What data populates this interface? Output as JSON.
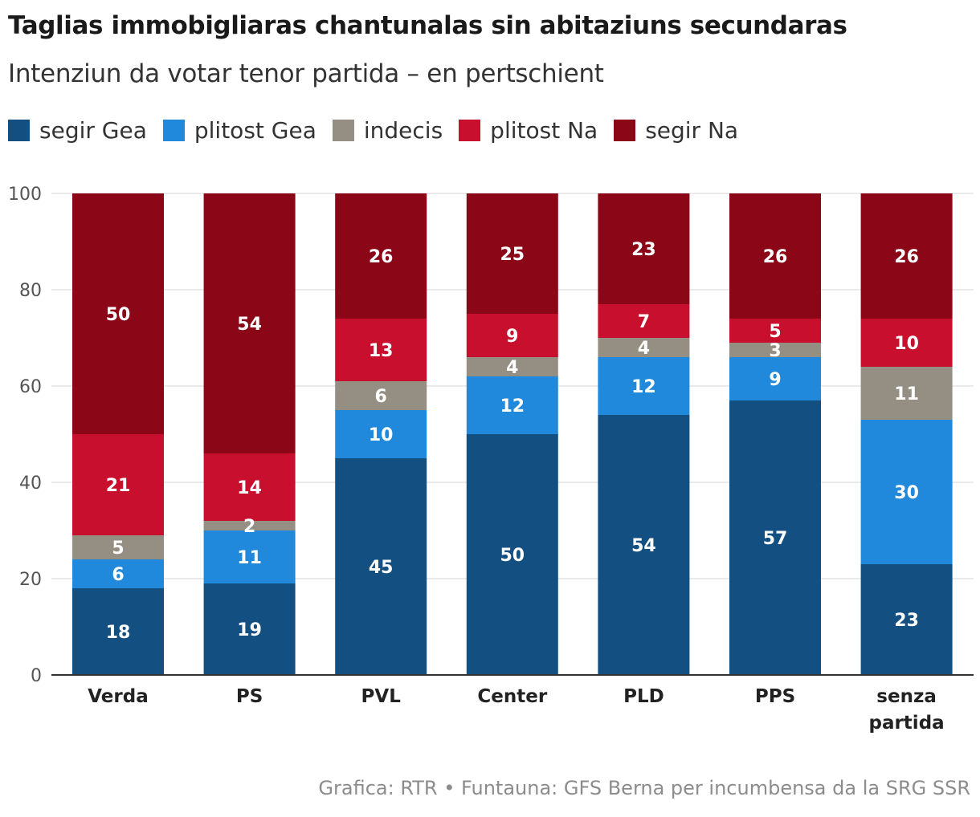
{
  "header": {
    "title": "Taglias immobigliaras chantunalas sin abitaziuns secundaras",
    "subtitle": "Intenziun da votar tenor partida – en pertschient"
  },
  "legend": {
    "items": [
      {
        "label": "segir Gea",
        "color": "#134f80"
      },
      {
        "label": "plitost Gea",
        "color": "#2189dc"
      },
      {
        "label": "indecis",
        "color": "#958f83"
      },
      {
        "label": "plitost Na",
        "color": "#c8102e"
      },
      {
        "label": "segir Na",
        "color": "#8b0616"
      }
    ]
  },
  "footer": {
    "credit": "Grafica: RTR • Funtauna: GFS Berna per incumbensa da la SRG SSR"
  },
  "chart_data": {
    "type": "bar",
    "stacked": true,
    "title": "Taglias immobigliaras chantunalas sin abitaziuns secundaras",
    "subtitle": "Intenziun da votar tenor partida – en pertschient",
    "xlabel": "",
    "ylabel": "",
    "ylim": [
      0,
      100
    ],
    "yticks": [
      0,
      20,
      40,
      60,
      80,
      100
    ],
    "grid": true,
    "legend_position": "top-left",
    "categories": [
      [
        "Verda"
      ],
      [
        "PS"
      ],
      [
        "PVL"
      ],
      [
        "Center"
      ],
      [
        "PLD"
      ],
      [
        "PPS"
      ],
      [
        "senza",
        "partida"
      ]
    ],
    "series": [
      {
        "name": "segir Gea",
        "color": "#134f80",
        "values": [
          18,
          19,
          45,
          50,
          54,
          57,
          23
        ]
      },
      {
        "name": "plitost Gea",
        "color": "#2189dc",
        "values": [
          6,
          11,
          10,
          12,
          12,
          9,
          30
        ]
      },
      {
        "name": "indecis",
        "color": "#958f83",
        "values": [
          5,
          2,
          6,
          4,
          4,
          3,
          11
        ]
      },
      {
        "name": "plitost Na",
        "color": "#c8102e",
        "values": [
          21,
          14,
          13,
          9,
          7,
          5,
          10
        ]
      },
      {
        "name": "segir Na",
        "color": "#8b0616",
        "values": [
          50,
          54,
          26,
          25,
          23,
          26,
          26
        ]
      }
    ]
  }
}
